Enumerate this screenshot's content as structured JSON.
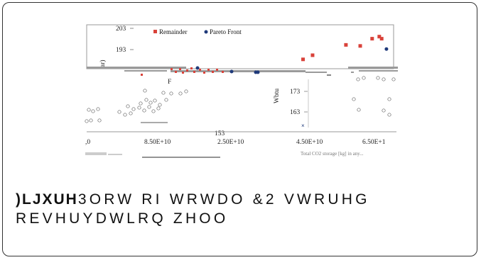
{
  "chart_data": {
    "type": "scatter",
    "title": "",
    "xlabel": "Total CO2 storage [kg] in any...",
    "ylabel": "Wbtu",
    "side_label": "ar)",
    "inset_label": "F",
    "y_ticks_upper": [
      "203",
      "193"
    ],
    "y_ticks_lower": [
      "173",
      "163",
      "153"
    ],
    "x_ticks": [
      ",0",
      "8.50E+10",
      "2.50E+10",
      "4.50E+10",
      "6.50E+1"
    ],
    "legend": [
      {
        "name": "Remainder",
        "color": "#d9423a",
        "marker": "square"
      },
      {
        "name": "Pareto Front",
        "color": "#1f3a7a",
        "marker": "circle"
      }
    ],
    "series": [
      {
        "name": "Remainder",
        "x": [
          2.9,
          3.1,
          3.8,
          4.1,
          4.35,
          4.5,
          4.55
        ],
        "y": [
          188,
          190,
          195,
          194.5,
          198,
          199,
          198
        ]
      },
      {
        "name": "Pareto Front",
        "x": [
          4.65
        ],
        "y": [
          193
        ]
      }
    ],
    "legend_position": "top"
  },
  "colors": {
    "remainder": "#d9423a",
    "pareto": "#1f3a7a",
    "gray_bar": "#9a9a9a"
  },
  "caption": {
    "prefix": ")LJXUH",
    "text_line1": "3ORW RI WRWDO &2  VWRUHG",
    "text_line2": "REVHUYDWLRQ ZHOO"
  }
}
